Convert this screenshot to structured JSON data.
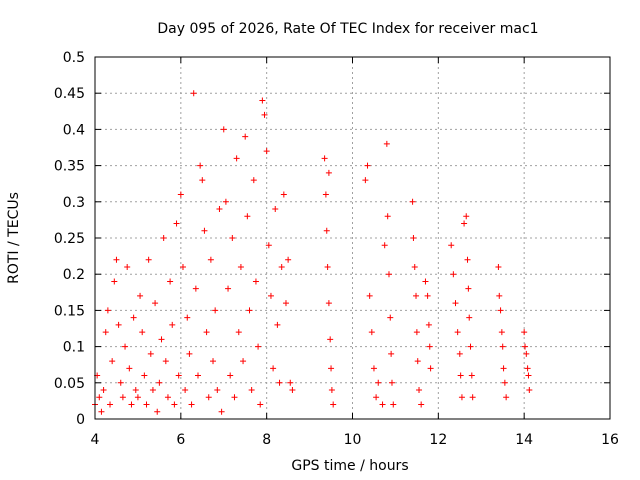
{
  "chart_data": {
    "type": "scatter",
    "title": "Day 095 of 2026, Rate Of TEC Index for receiver mac1",
    "xlabel": "GPS time / hours",
    "ylabel": "ROTI / TECUs",
    "xlim": [
      4,
      16
    ],
    "ylim": [
      0,
      0.5
    ],
    "xticks": [
      "4",
      "6",
      "8",
      "10",
      "12",
      "14",
      "16"
    ],
    "yticks": [
      "0",
      "0.05",
      "0.1",
      "0.15",
      "0.2",
      "0.25",
      "0.3",
      "0.35",
      "0.4",
      "0.45",
      "0.5"
    ],
    "grid": true,
    "marker": "+",
    "color": "#ff0000",
    "series": [
      {
        "name": "ROTI",
        "points": [
          [
            4.0,
            0.02
          ],
          [
            4.05,
            0.06
          ],
          [
            4.1,
            0.03
          ],
          [
            4.15,
            0.01
          ],
          [
            4.2,
            0.04
          ],
          [
            4.25,
            0.12
          ],
          [
            4.3,
            0.15
          ],
          [
            4.35,
            0.02
          ],
          [
            4.4,
            0.08
          ],
          [
            4.45,
            0.19
          ],
          [
            4.5,
            0.22
          ],
          [
            4.55,
            0.13
          ],
          [
            4.6,
            0.05
          ],
          [
            4.65,
            0.03
          ],
          [
            4.7,
            0.1
          ],
          [
            4.75,
            0.21
          ],
          [
            4.8,
            0.07
          ],
          [
            4.85,
            0.02
          ],
          [
            4.9,
            0.14
          ],
          [
            4.95,
            0.04
          ],
          [
            5.0,
            0.03
          ],
          [
            5.05,
            0.17
          ],
          [
            5.1,
            0.12
          ],
          [
            5.15,
            0.06
          ],
          [
            5.2,
            0.02
          ],
          [
            5.25,
            0.22
          ],
          [
            5.3,
            0.09
          ],
          [
            5.35,
            0.04
          ],
          [
            5.4,
            0.16
          ],
          [
            5.45,
            0.01
          ],
          [
            5.5,
            0.05
          ],
          [
            5.55,
            0.11
          ],
          [
            5.6,
            0.25
          ],
          [
            5.65,
            0.08
          ],
          [
            5.7,
            0.03
          ],
          [
            5.75,
            0.19
          ],
          [
            5.8,
            0.13
          ],
          [
            5.85,
            0.02
          ],
          [
            5.9,
            0.27
          ],
          [
            5.95,
            0.06
          ],
          [
            6.0,
            0.31
          ],
          [
            6.05,
            0.21
          ],
          [
            6.1,
            0.04
          ],
          [
            6.15,
            0.14
          ],
          [
            6.2,
            0.09
          ],
          [
            6.25,
            0.02
          ],
          [
            6.3,
            0.45
          ],
          [
            6.35,
            0.18
          ],
          [
            6.4,
            0.06
          ],
          [
            6.45,
            0.35
          ],
          [
            6.5,
            0.33
          ],
          [
            6.55,
            0.26
          ],
          [
            6.6,
            0.12
          ],
          [
            6.65,
            0.03
          ],
          [
            6.7,
            0.22
          ],
          [
            6.75,
            0.08
          ],
          [
            6.8,
            0.15
          ],
          [
            6.85,
            0.04
          ],
          [
            6.9,
            0.29
          ],
          [
            6.95,
            0.01
          ],
          [
            7.0,
            0.4
          ],
          [
            7.05,
            0.3
          ],
          [
            7.1,
            0.18
          ],
          [
            7.15,
            0.06
          ],
          [
            7.2,
            0.25
          ],
          [
            7.25,
            0.03
          ],
          [
            7.3,
            0.36
          ],
          [
            7.35,
            0.12
          ],
          [
            7.4,
            0.21
          ],
          [
            7.45,
            0.08
          ],
          [
            7.5,
            0.39
          ],
          [
            7.55,
            0.28
          ],
          [
            7.6,
            0.15
          ],
          [
            7.65,
            0.04
          ],
          [
            7.7,
            0.33
          ],
          [
            7.75,
            0.19
          ],
          [
            7.8,
            0.1
          ],
          [
            7.85,
            0.02
          ],
          [
            7.9,
            0.44
          ],
          [
            7.95,
            0.42
          ],
          [
            8.0,
            0.37
          ],
          [
            8.05,
            0.24
          ],
          [
            8.1,
            0.17
          ],
          [
            8.15,
            0.07
          ],
          [
            8.2,
            0.29
          ],
          [
            8.25,
            0.13
          ],
          [
            8.3,
            0.05
          ],
          [
            8.35,
            0.21
          ],
          [
            8.4,
            0.31
          ],
          [
            8.45,
            0.16
          ],
          [
            8.5,
            0.22
          ],
          [
            8.55,
            0.05
          ],
          [
            8.6,
            0.04
          ],
          [
            9.35,
            0.36
          ],
          [
            9.38,
            0.31
          ],
          [
            9.4,
            0.26
          ],
          [
            9.42,
            0.21
          ],
          [
            9.45,
            0.16
          ],
          [
            9.48,
            0.11
          ],
          [
            9.5,
            0.07
          ],
          [
            9.52,
            0.04
          ],
          [
            9.55,
            0.02
          ],
          [
            9.45,
            0.34
          ],
          [
            10.3,
            0.33
          ],
          [
            10.35,
            0.35
          ],
          [
            10.4,
            0.17
          ],
          [
            10.45,
            0.12
          ],
          [
            10.5,
            0.07
          ],
          [
            10.55,
            0.03
          ],
          [
            10.6,
            0.05
          ],
          [
            10.7,
            0.02
          ],
          [
            10.75,
            0.24
          ],
          [
            10.8,
            0.38
          ],
          [
            10.82,
            0.28
          ],
          [
            10.85,
            0.2
          ],
          [
            10.88,
            0.14
          ],
          [
            10.9,
            0.09
          ],
          [
            10.92,
            0.05
          ],
          [
            10.95,
            0.02
          ],
          [
            11.4,
            0.3
          ],
          [
            11.42,
            0.25
          ],
          [
            11.45,
            0.21
          ],
          [
            11.48,
            0.17
          ],
          [
            11.5,
            0.12
          ],
          [
            11.52,
            0.08
          ],
          [
            11.55,
            0.04
          ],
          [
            11.6,
            0.02
          ],
          [
            11.7,
            0.19
          ],
          [
            11.75,
            0.17
          ],
          [
            11.78,
            0.13
          ],
          [
            11.8,
            0.1
          ],
          [
            11.82,
            0.07
          ],
          [
            12.3,
            0.24
          ],
          [
            12.35,
            0.2
          ],
          [
            12.4,
            0.16
          ],
          [
            12.45,
            0.12
          ],
          [
            12.5,
            0.09
          ],
          [
            12.52,
            0.06
          ],
          [
            12.55,
            0.03
          ],
          [
            12.6,
            0.27
          ],
          [
            12.65,
            0.28
          ],
          [
            12.68,
            0.22
          ],
          [
            12.7,
            0.18
          ],
          [
            12.72,
            0.14
          ],
          [
            12.75,
            0.1
          ],
          [
            12.78,
            0.06
          ],
          [
            12.8,
            0.03
          ],
          [
            13.4,
            0.21
          ],
          [
            13.42,
            0.17
          ],
          [
            13.45,
            0.15
          ],
          [
            13.48,
            0.12
          ],
          [
            13.5,
            0.1
          ],
          [
            13.52,
            0.07
          ],
          [
            13.55,
            0.05
          ],
          [
            13.58,
            0.03
          ],
          [
            14.0,
            0.12
          ],
          [
            14.02,
            0.1
          ],
          [
            14.05,
            0.09
          ],
          [
            14.08,
            0.07
          ],
          [
            14.1,
            0.06
          ],
          [
            14.12,
            0.04
          ]
        ]
      }
    ]
  }
}
